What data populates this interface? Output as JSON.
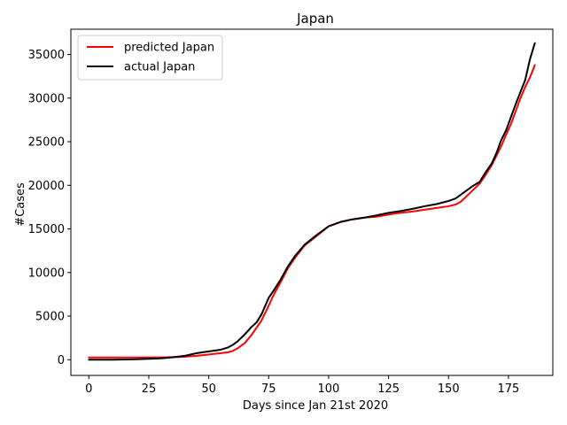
{
  "chart_data": {
    "type": "line",
    "title": "Japan",
    "xlabel": "Days since Jan 21st 2020",
    "ylabel": "#Cases",
    "xlim": [
      -7.5,
      193.5
    ],
    "ylim": [
      -1800,
      37900
    ],
    "xticks": [
      0,
      25,
      50,
      75,
      100,
      125,
      150,
      175
    ],
    "yticks": [
      0,
      5000,
      10000,
      15000,
      20000,
      25000,
      30000,
      35000
    ],
    "grid": false,
    "legend_position": "top-left",
    "series": [
      {
        "name": "predicted Japan",
        "color": "#ff0000",
        "x": [
          0,
          10,
          20,
          30,
          35,
          40,
          45,
          50,
          55,
          58,
          60,
          62,
          65,
          68,
          70,
          72,
          75,
          77,
          80,
          83,
          86,
          90,
          95,
          100,
          105,
          110,
          115,
          120,
          125,
          130,
          135,
          140,
          145,
          150,
          153,
          155,
          157,
          160,
          163,
          165,
          168,
          170,
          172,
          174,
          176,
          178,
          180,
          182,
          184,
          186
        ],
        "y": [
          250,
          250,
          250,
          270,
          300,
          350,
          450,
          600,
          750,
          850,
          1000,
          1300,
          1900,
          2900,
          3700,
          4500,
          6200,
          7400,
          8900,
          10500,
          11700,
          13100,
          14200,
          15300,
          15800,
          16100,
          16300,
          16400,
          16650,
          16850,
          17000,
          17200,
          17400,
          17600,
          17800,
          18100,
          18600,
          19400,
          20200,
          21000,
          22300,
          23400,
          24500,
          25800,
          27000,
          28500,
          30000,
          31300,
          32400,
          33800
        ]
      },
      {
        "name": "actual Japan",
        "color": "#000000",
        "x": [
          0,
          10,
          20,
          30,
          35,
          40,
          45,
          50,
          55,
          58,
          60,
          62,
          65,
          68,
          70,
          72,
          75,
          77,
          80,
          83,
          86,
          90,
          95,
          100,
          105,
          110,
          115,
          120,
          125,
          130,
          135,
          140,
          145,
          150,
          153,
          155,
          157,
          160,
          163,
          165,
          168,
          170,
          172,
          174,
          176,
          178,
          180,
          182,
          184,
          185,
          186
        ],
        "y": [
          0,
          0,
          50,
          150,
          280,
          450,
          750,
          950,
          1150,
          1400,
          1700,
          2100,
          2900,
          3800,
          4300,
          5200,
          7100,
          7900,
          9200,
          10700,
          11900,
          13200,
          14300,
          15300,
          15800,
          16100,
          16300,
          16550,
          16850,
          17050,
          17300,
          17600,
          17850,
          18200,
          18500,
          18900,
          19300,
          19900,
          20400,
          21300,
          22500,
          23700,
          25200,
          26300,
          27800,
          29300,
          30700,
          32100,
          34500,
          35400,
          36300
        ]
      }
    ]
  }
}
